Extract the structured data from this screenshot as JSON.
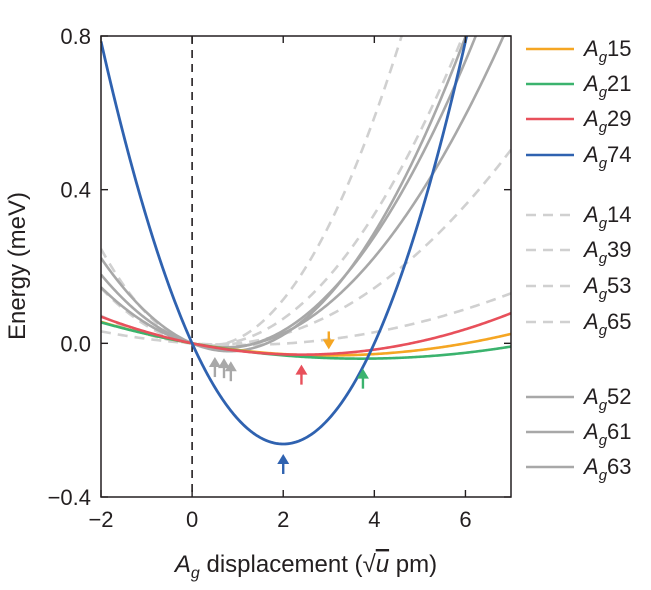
{
  "chart_data": {
    "type": "line",
    "xlabel": {
      "pre": "A",
      "sub": "g",
      "post": " displacement (",
      "sqrt": "√",
      "unit": "u",
      "tail": " pm)"
    },
    "ylabel": "Energy (meV)",
    "xlim": [
      -2,
      7
    ],
    "ylim": [
      -0.4,
      0.8
    ],
    "xticks": [
      -2,
      0,
      2,
      4,
      6
    ],
    "yticks": [
      -0.4,
      0.0,
      0.4,
      0.8
    ],
    "xtick_labels": [
      "−2",
      "0",
      "2",
      "4",
      "6"
    ],
    "ytick_labels": [
      "−0.4",
      "0.0",
      "0.4",
      "0.8"
    ],
    "reference_line": {
      "x": 0,
      "style": "dashed",
      "color": "#231f20"
    },
    "series": [
      {
        "name": "Ag15",
        "base": "A",
        "sub": "g",
        "num": "15",
        "color": "#f5a623",
        "dash": "solid",
        "a": 0.0035,
        "b": -0.021,
        "arrow_x": 3.0,
        "arrow_dir": "down"
      },
      {
        "name": "Ag21",
        "base": "A",
        "sub": "g",
        "num": "21",
        "color": "#3bb36e",
        "dash": "solid",
        "a": 0.0029,
        "b": -0.0215,
        "arrow_x": 3.75,
        "arrow_dir": "up"
      },
      {
        "name": "Ag29",
        "base": "A",
        "sub": "g",
        "num": "29",
        "color": "#e8505b",
        "dash": "solid",
        "a": 0.0051,
        "b": -0.0245,
        "arrow_x": 2.4,
        "arrow_dir": "up"
      },
      {
        "name": "Ag74",
        "base": "A",
        "sub": "g",
        "num": "74",
        "color": "#2f62b0",
        "dash": "solid",
        "a": 0.0655,
        "b": -0.262,
        "arrow_x": 2.0,
        "arrow_dir": "up"
      },
      {
        "name": "Ag14",
        "base": "A",
        "sub": "g",
        "num": "14",
        "color": "#d0d0d0",
        "dash": "dashed",
        "a": 0.026,
        "b": -0.02,
        "arrow_x": null
      },
      {
        "name": "Ag39",
        "base": "A",
        "sub": "g",
        "num": "39",
        "color": "#d0d0d0",
        "dash": "dashed",
        "a": 0.012,
        "b": -0.012,
        "arrow_x": null
      },
      {
        "name": "Ag53",
        "base": "A",
        "sub": "g",
        "num": "53",
        "color": "#d0d0d0",
        "dash": "dashed",
        "a": 0.045,
        "b": -0.033,
        "arrow_x": null
      },
      {
        "name": "Ag65",
        "base": "A",
        "sub": "g",
        "num": "65",
        "color": "#d0d0d0",
        "dash": "dashed",
        "a": 0.0038,
        "b": -0.008,
        "arrow_x": null
      },
      {
        "name": "Ag52",
        "base": "A",
        "sub": "g",
        "num": "52",
        "color": "#a8a8a8",
        "dash": "solid",
        "a": 0.0265,
        "b": -0.0365,
        "arrow_x": 0.7,
        "arrow_dir": "up"
      },
      {
        "name": "Ag61",
        "base": "A",
        "sub": "g",
        "num": "61",
        "color": "#a8a8a8",
        "dash": "solid",
        "a": 0.0215,
        "b": -0.03,
        "arrow_x": 0.5,
        "arrow_dir": "up"
      },
      {
        "name": "Ag63",
        "base": "A",
        "sub": "g",
        "num": "63",
        "color": "#a8a8a8",
        "dash": "solid",
        "a": 0.0305,
        "b": -0.05,
        "arrow_x": 0.85,
        "arrow_dir": "up"
      }
    ]
  }
}
